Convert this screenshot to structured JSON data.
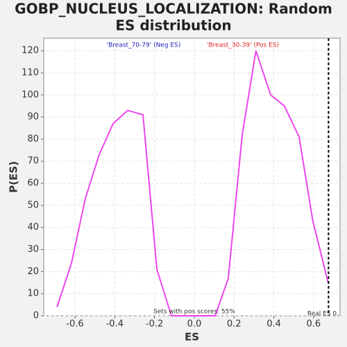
{
  "chart_data": {
    "type": "line",
    "title": [
      "GOBP_NUCLEUS_LOCALIZATION: Random",
      "ES distribution"
    ],
    "xlabel": "ES",
    "ylabel": "P(ES)",
    "x": [
      -0.69,
      -0.617,
      -0.548,
      -0.478,
      -0.408,
      -0.335,
      -0.258,
      -0.188,
      -0.115,
      -0.04,
      0.03,
      0.105,
      0.171,
      0.241,
      0.31,
      0.384,
      0.453,
      0.527,
      0.596,
      0.673
    ],
    "values": [
      4,
      24,
      53,
      73,
      87,
      93,
      91,
      21,
      0,
      0,
      0,
      0,
      17,
      82,
      120,
      100,
      95,
      81,
      43,
      15
    ],
    "color": "#ee44ee",
    "xlim": [
      -0.757,
      0.733
    ],
    "ylim": [
      0,
      125.7
    ],
    "xticks": [
      -0.6,
      -0.4,
      -0.2,
      {
        "value": 0,
        "label": "0.0"
      },
      0.2,
      0.4,
      0.6
    ],
    "yticks": [
      0,
      10,
      20,
      30,
      40,
      50,
      60,
      70,
      80,
      90,
      100,
      110,
      120
    ],
    "grid": true,
    "legend": [
      {
        "text": "'Breast_70-79' (Neg ES)",
        "color": "#2222bb"
      },
      {
        "text": "'Breast_30-39' (Pos ES)",
        "color": "#dd2222"
      }
    ],
    "annotation": "Sets with pos scores: 55%",
    "real_es": 0.675,
    "real_es_label": "Real ES 0."
  }
}
